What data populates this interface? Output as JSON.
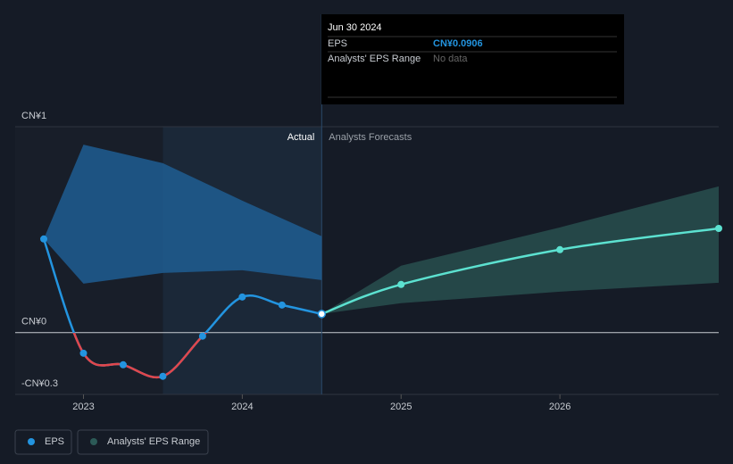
{
  "chart_data": {
    "type": "line",
    "xlim": [
      2022.57,
      2027.0
    ],
    "xticks": [
      2023,
      2024,
      2025,
      2026
    ],
    "ylim": [
      -0.3,
      1
    ],
    "yticks": [
      {
        "value": 1,
        "label": "CN¥1"
      },
      {
        "value": 0,
        "label": "CN¥0"
      },
      {
        "value": -0.3,
        "label": "-CN¥0.3"
      }
    ],
    "highlight_x": [
      2023.5,
      2024.5
    ],
    "divider_x": 2024.5,
    "actual_label": "Actual",
    "forecast_label": "Analysts Forecasts",
    "series": [
      {
        "name": "EPS",
        "color": "#2394df",
        "negative_color": "#e0474c",
        "x": [
          2022.75,
          2023.0,
          2023.25,
          2023.5,
          2023.75,
          2024.0,
          2024.25,
          2024.5
        ],
        "values": [
          0.455,
          -0.1,
          -0.156,
          -0.212,
          -0.017,
          0.173,
          0.134,
          0.0906
        ]
      }
    ],
    "forecast": {
      "color": "#5ce1d0",
      "x": [
        2024.5,
        2025.0,
        2026.0,
        2027.0
      ],
      "values": [
        0.0906,
        0.234,
        0.403,
        0.506
      ]
    },
    "range": {
      "name": "Analysts' EPS Range",
      "color": "#1f5d92",
      "x": [
        2022.75,
        2023.0,
        2023.5,
        2024.0,
        2024.5
      ],
      "low": [
        0.455,
        0.238,
        0.29,
        0.303,
        0.255
      ],
      "high": [
        0.455,
        0.913,
        0.823,
        0.641,
        0.468
      ]
    },
    "forecast_range": {
      "color": "#2c5a57",
      "x": [
        2024.5,
        2025.0,
        2026.0,
        2027.0
      ],
      "low": [
        0.0906,
        0.143,
        0.199,
        0.242
      ],
      "high": [
        0.0906,
        0.325,
        0.511,
        0.71
      ]
    }
  },
  "tooltip": {
    "date": "Jun 30 2024",
    "rows": [
      [
        "EPS",
        "CN¥0.0906"
      ],
      [
        "Analysts' EPS Range",
        "No data"
      ]
    ]
  }
}
